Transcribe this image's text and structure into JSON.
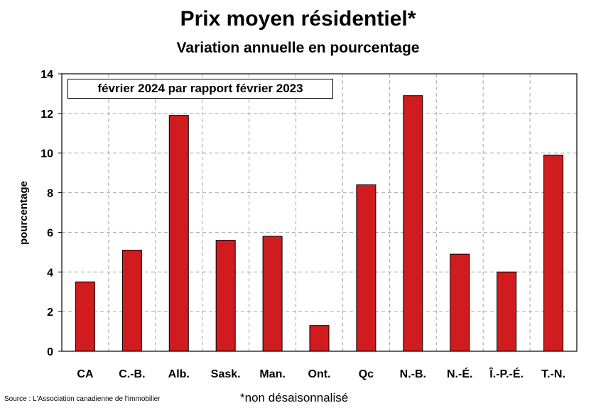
{
  "chart_data": {
    "type": "bar",
    "title": "Prix moyen résidentiel*",
    "subtitle": "Variation annuelle en pourcentage",
    "ylabel": "pourcentage",
    "xlabel": "",
    "legend_label": "février 2024 par rapport février 2023",
    "legend_position": "top-left",
    "categories": [
      "CA",
      "C.-B.",
      "Alb.",
      "Sask.",
      "Man.",
      "Ont.",
      "Qc",
      "N.-B.",
      "N.-É.",
      "Î.-P.-É.",
      "T.-N."
    ],
    "values": [
      3.5,
      5.1,
      11.9,
      5.6,
      5.8,
      1.3,
      8.4,
      12.9,
      4.9,
      4.0,
      9.9
    ],
    "ylim": [
      0,
      14
    ],
    "yticks": [
      0,
      2,
      4,
      6,
      8,
      10,
      12,
      14
    ],
    "grid": true,
    "bar_color": "#d01c1f"
  },
  "footer": {
    "source": "Source : L'Association canadienne de l'immobilier",
    "footnote": "*non désaisonnalisé"
  }
}
